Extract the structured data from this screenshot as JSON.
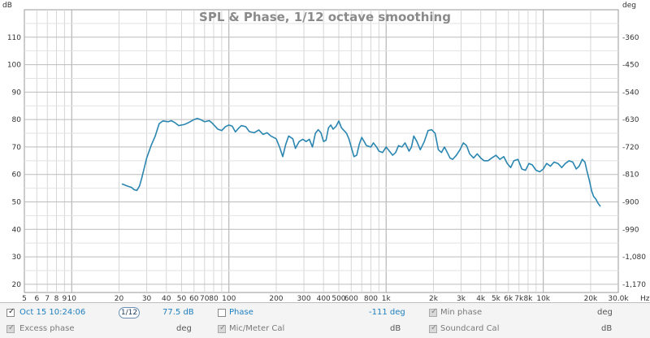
{
  "chart_data": {
    "type": "line",
    "title": "SPL & Phase, 1/12 octave smoothing",
    "left_unit": "dB",
    "right_unit": "deg",
    "x_unit": "Hz",
    "x_scale": "log",
    "xlim": [
      5,
      30000
    ],
    "ylim": [
      17,
      120
    ],
    "x_ticks": [
      {
        "v": 5,
        "label": "5"
      },
      {
        "v": 6,
        "label": "6"
      },
      {
        "v": 7,
        "label": "7"
      },
      {
        "v": 8,
        "label": "8"
      },
      {
        "v": 9,
        "label": "9"
      },
      {
        "v": 10,
        "label": "10"
      },
      {
        "v": 20,
        "label": "20"
      },
      {
        "v": 30,
        "label": "30"
      },
      {
        "v": 40,
        "label": "40"
      },
      {
        "v": 50,
        "label": "50"
      },
      {
        "v": 60,
        "label": "60"
      },
      {
        "v": 70,
        "label": "70"
      },
      {
        "v": 80,
        "label": "80"
      },
      {
        "v": 100,
        "label": "100"
      },
      {
        "v": 200,
        "label": "200"
      },
      {
        "v": 300,
        "label": "300"
      },
      {
        "v": 400,
        "label": "400"
      },
      {
        "v": 500,
        "label": "500"
      },
      {
        "v": 600,
        "label": "600"
      },
      {
        "v": 800,
        "label": "800"
      },
      {
        "v": 1000,
        "label": "1k"
      },
      {
        "v": 2000,
        "label": "2k"
      },
      {
        "v": 3000,
        "label": "3k"
      },
      {
        "v": 4000,
        "label": "4k"
      },
      {
        "v": 5000,
        "label": "5k"
      },
      {
        "v": 6000,
        "label": "6k"
      },
      {
        "v": 7000,
        "label": "7k"
      },
      {
        "v": 8000,
        "label": "8k"
      },
      {
        "v": 10000,
        "label": "10k"
      },
      {
        "v": 20000,
        "label": "20k"
      },
      {
        "v": 30000,
        "label": "30.0k"
      }
    ],
    "y_ticks_left": [
      20,
      30,
      40,
      50,
      60,
      70,
      80,
      90,
      100,
      110
    ],
    "y_ticks_right": [
      {
        "at": 110,
        "label": "-360"
      },
      {
        "at": 100,
        "label": "-450"
      },
      {
        "at": 90,
        "label": "-540"
      },
      {
        "at": 80,
        "label": "-630"
      },
      {
        "at": 70,
        "label": "-720"
      },
      {
        "at": 60,
        "label": "-810"
      },
      {
        "at": 50,
        "label": "-900"
      },
      {
        "at": 40,
        "label": "-990"
      },
      {
        "at": 30,
        "label": "-1,080"
      },
      {
        "at": 20,
        "label": "-1,170"
      }
    ],
    "grid": true,
    "series": [
      {
        "color": "#2a86b0",
        "points": [
          [
            21,
            56.5
          ],
          [
            22.5,
            55.8
          ],
          [
            24,
            55.3
          ],
          [
            25,
            54.4
          ],
          [
            26,
            54.2
          ],
          [
            27,
            55.8
          ],
          [
            28,
            59
          ],
          [
            30,
            66
          ],
          [
            32,
            70.5
          ],
          [
            34,
            74
          ],
          [
            36,
            78.5
          ],
          [
            38,
            79.5
          ],
          [
            41,
            79.2
          ],
          [
            43,
            79.6
          ],
          [
            45,
            79
          ],
          [
            48,
            77.8
          ],
          [
            52,
            78.2
          ],
          [
            55,
            78.8
          ],
          [
            60,
            80
          ],
          [
            63,
            80.4
          ],
          [
            66,
            80
          ],
          [
            70,
            79.2
          ],
          [
            75,
            79.6
          ],
          [
            78,
            78.8
          ],
          [
            85,
            76.5
          ],
          [
            90,
            76
          ],
          [
            95,
            77.4
          ],
          [
            100,
            78
          ],
          [
            105,
            77.6
          ],
          [
            110,
            75.5
          ],
          [
            115,
            76.8
          ],
          [
            120,
            77.8
          ],
          [
            128,
            77.4
          ],
          [
            135,
            75.6
          ],
          [
            145,
            75.2
          ],
          [
            155,
            76.2
          ],
          [
            165,
            74.6
          ],
          [
            175,
            75.2
          ],
          [
            185,
            74
          ],
          [
            200,
            73
          ],
          [
            210,
            70
          ],
          [
            220,
            66.5
          ],
          [
            230,
            71
          ],
          [
            240,
            74
          ],
          [
            255,
            73
          ],
          [
            265,
            69.5
          ],
          [
            280,
            72
          ],
          [
            295,
            72.8
          ],
          [
            310,
            72
          ],
          [
            325,
            72.8
          ],
          [
            340,
            70
          ],
          [
            355,
            75
          ],
          [
            370,
            76.3
          ],
          [
            385,
            75.2
          ],
          [
            400,
            72
          ],
          [
            415,
            72.5
          ],
          [
            430,
            77
          ],
          [
            445,
            78
          ],
          [
            460,
            76.5
          ],
          [
            480,
            77.5
          ],
          [
            500,
            79.5
          ],
          [
            520,
            77
          ],
          [
            540,
            76
          ],
          [
            560,
            75
          ],
          [
            580,
            73
          ],
          [
            600,
            70
          ],
          [
            625,
            66.5
          ],
          [
            650,
            67
          ],
          [
            675,
            71
          ],
          [
            700,
            73.5
          ],
          [
            725,
            72
          ],
          [
            750,
            70.5
          ],
          [
            800,
            70
          ],
          [
            830,
            71.5
          ],
          [
            870,
            70
          ],
          [
            900,
            68.5
          ],
          [
            950,
            68
          ],
          [
            1000,
            70
          ],
          [
            1050,
            68.5
          ],
          [
            1100,
            67
          ],
          [
            1150,
            68
          ],
          [
            1200,
            70.5
          ],
          [
            1260,
            70
          ],
          [
            1320,
            71.5
          ],
          [
            1400,
            68.5
          ],
          [
            1450,
            70
          ],
          [
            1500,
            74
          ],
          [
            1570,
            72
          ],
          [
            1650,
            69
          ],
          [
            1750,
            72
          ],
          [
            1850,
            76
          ],
          [
            1950,
            76.3
          ],
          [
            2050,
            75
          ],
          [
            2150,
            69
          ],
          [
            2250,
            68
          ],
          [
            2350,
            70
          ],
          [
            2450,
            68
          ],
          [
            2550,
            66
          ],
          [
            2650,
            65.5
          ],
          [
            2800,
            67
          ],
          [
            2950,
            69
          ],
          [
            3100,
            71.5
          ],
          [
            3250,
            70.5
          ],
          [
            3400,
            67.5
          ],
          [
            3600,
            66
          ],
          [
            3800,
            67.5
          ],
          [
            4000,
            66
          ],
          [
            4200,
            65
          ],
          [
            4450,
            65
          ],
          [
            4700,
            66
          ],
          [
            5000,
            67
          ],
          [
            5300,
            65.5
          ],
          [
            5600,
            66.5
          ],
          [
            5900,
            64
          ],
          [
            6200,
            62.5
          ],
          [
            6500,
            65
          ],
          [
            6900,
            65.5
          ],
          [
            7300,
            62
          ],
          [
            7700,
            61.5
          ],
          [
            8100,
            64
          ],
          [
            8500,
            63.5
          ],
          [
            9000,
            61.5
          ],
          [
            9500,
            61
          ],
          [
            10000,
            62
          ],
          [
            10500,
            64
          ],
          [
            11100,
            63
          ],
          [
            11700,
            64.5
          ],
          [
            12400,
            64
          ],
          [
            13100,
            62.5
          ],
          [
            13800,
            64
          ],
          [
            14600,
            65
          ],
          [
            15400,
            64.5
          ],
          [
            16200,
            62
          ],
          [
            16900,
            63
          ],
          [
            17700,
            65.5
          ],
          [
            18400,
            64.5
          ],
          [
            19000,
            61
          ],
          [
            19600,
            58
          ],
          [
            20300,
            54
          ],
          [
            20900,
            52
          ],
          [
            21600,
            51
          ],
          [
            22300,
            49.5
          ],
          [
            23000,
            48.5
          ]
        ]
      }
    ]
  },
  "legend": {
    "row1": {
      "trace_label": "Oct 15 10:24:06",
      "smoothing": "1/12",
      "trace_value": "77.5 dB",
      "phase_label": "Phase",
      "phase_value": "-111 deg",
      "minphase_label": "Min phase",
      "minphase_value": "deg"
    },
    "row2": {
      "excess_label": "Excess phase",
      "excess_value": "deg",
      "mic_label": "Mic/Meter Cal",
      "mic_value": "dB",
      "sound_label": "Soundcard Cal",
      "sound_value": "dB"
    },
    "check_glyph": "✓"
  }
}
